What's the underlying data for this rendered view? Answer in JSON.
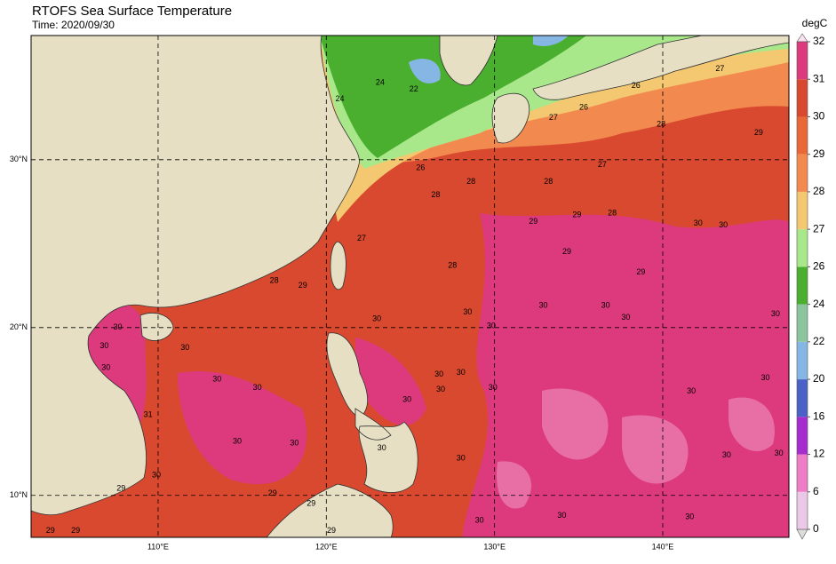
{
  "chart_data": {
    "type": "map",
    "title": "RTOFS Sea Surface Temperature",
    "subtitle": "Time: 2020/09/30",
    "xlim": [
      102.45,
      147.5
    ],
    "ylim": [
      7.5,
      37.4
    ],
    "xticks": [
      {
        "value": 110,
        "label": "110°E"
      },
      {
        "value": 120,
        "label": "120°E"
      },
      {
        "value": 130,
        "label": "130°E"
      },
      {
        "value": 140,
        "label": "140°E"
      }
    ],
    "yticks": [
      {
        "value": 10,
        "label": "10°N"
      },
      {
        "value": 20,
        "label": "20°N"
      },
      {
        "value": 30,
        "label": "30°N"
      }
    ],
    "grid": true,
    "colorbar": {
      "label": "degC",
      "levels": [
        0,
        6,
        12,
        16,
        20,
        22,
        24,
        26,
        27,
        28,
        29,
        30,
        31,
        32
      ],
      "colors": [
        "#ecc8e8",
        "#ee7cc6",
        "#a62cd0",
        "#4a62c8",
        "#86b6e4",
        "#8cc4a0",
        "#4aae2e",
        "#a8e88a",
        "#f4c870",
        "#f4894e",
        "#ea6838",
        "#d9492f",
        "#dc3a7c"
      ],
      "under_color": "#dddddd",
      "over_color": "#fbe0ef"
    },
    "contour_labels": [
      {
        "text": "22",
        "lon": 125.2,
        "lat": 34.2
      },
      {
        "text": "24",
        "lon": 123.2,
        "lat": 34.6
      },
      {
        "text": "24",
        "lon": 120.8,
        "lat": 33.6
      },
      {
        "text": "26",
        "lon": 135.3,
        "lat": 33.1
      },
      {
        "text": "26",
        "lon": 138.4,
        "lat": 34.4
      },
      {
        "text": "27",
        "lon": 143.4,
        "lat": 35.4
      },
      {
        "text": "27",
        "lon": 133.5,
        "lat": 32.5
      },
      {
        "text": "27",
        "lon": 136.4,
        "lat": 29.7
      },
      {
        "text": "28",
        "lon": 139.9,
        "lat": 32.1
      },
      {
        "text": "29",
        "lon": 145.7,
        "lat": 31.6
      },
      {
        "text": "26",
        "lon": 125.6,
        "lat": 29.5
      },
      {
        "text": "28",
        "lon": 128.6,
        "lat": 28.7
      },
      {
        "text": "28",
        "lon": 133.2,
        "lat": 28.7
      },
      {
        "text": "28",
        "lon": 126.5,
        "lat": 27.9
      },
      {
        "text": "29",
        "lon": 132.3,
        "lat": 26.3
      },
      {
        "text": "29",
        "lon": 134.9,
        "lat": 26.7
      },
      {
        "text": "28",
        "lon": 137.0,
        "lat": 26.8
      },
      {
        "text": "27",
        "lon": 122.1,
        "lat": 25.3
      },
      {
        "text": "29",
        "lon": 134.3,
        "lat": 24.5
      },
      {
        "text": "30",
        "lon": 142.1,
        "lat": 26.2
      },
      {
        "text": "30",
        "lon": 143.6,
        "lat": 26.1
      },
      {
        "text": "29",
        "lon": 138.7,
        "lat": 23.3
      },
      {
        "text": "28",
        "lon": 116.9,
        "lat": 22.8
      },
      {
        "text": "29",
        "lon": 118.6,
        "lat": 22.5
      },
      {
        "text": "28",
        "lon": 127.5,
        "lat": 23.7
      },
      {
        "text": "30",
        "lon": 123.0,
        "lat": 20.5
      },
      {
        "text": "30",
        "lon": 128.4,
        "lat": 20.9
      },
      {
        "text": "30",
        "lon": 129.8,
        "lat": 20.1
      },
      {
        "text": "30",
        "lon": 132.9,
        "lat": 21.3
      },
      {
        "text": "30",
        "lon": 136.6,
        "lat": 21.3
      },
      {
        "text": "30",
        "lon": 137.8,
        "lat": 20.6
      },
      {
        "text": "30",
        "lon": 146.7,
        "lat": 20.8
      },
      {
        "text": "30",
        "lon": 111.6,
        "lat": 18.8
      },
      {
        "text": "30",
        "lon": 113.5,
        "lat": 16.9
      },
      {
        "text": "30",
        "lon": 115.9,
        "lat": 16.4
      },
      {
        "text": "30",
        "lon": 126.7,
        "lat": 17.2
      },
      {
        "text": "30",
        "lon": 128.0,
        "lat": 17.3
      },
      {
        "text": "30",
        "lon": 124.8,
        "lat": 15.7
      },
      {
        "text": "30",
        "lon": 126.8,
        "lat": 16.3
      },
      {
        "text": "30",
        "lon": 129.9,
        "lat": 16.4
      },
      {
        "text": "30",
        "lon": 141.7,
        "lat": 16.2
      },
      {
        "text": "30",
        "lon": 146.1,
        "lat": 17.0
      },
      {
        "text": "30",
        "lon": 114.7,
        "lat": 13.2
      },
      {
        "text": "30",
        "lon": 118.1,
        "lat": 13.1
      },
      {
        "text": "30",
        "lon": 123.3,
        "lat": 12.8
      },
      {
        "text": "30",
        "lon": 128.0,
        "lat": 12.2
      },
      {
        "text": "30",
        "lon": 143.8,
        "lat": 12.4
      },
      {
        "text": "30",
        "lon": 146.9,
        "lat": 12.5
      },
      {
        "text": "30",
        "lon": 109.9,
        "lat": 11.2
      },
      {
        "text": "29",
        "lon": 107.8,
        "lat": 10.4
      },
      {
        "text": "29",
        "lon": 116.8,
        "lat": 10.1
      },
      {
        "text": "29",
        "lon": 119.1,
        "lat": 9.5
      },
      {
        "text": "30",
        "lon": 129.1,
        "lat": 8.5
      },
      {
        "text": "30",
        "lon": 134.0,
        "lat": 8.8
      },
      {
        "text": "30",
        "lon": 141.6,
        "lat": 8.7
      },
      {
        "text": "29",
        "lon": 103.6,
        "lat": 7.9
      },
      {
        "text": "29",
        "lon": 105.1,
        "lat": 7.9
      },
      {
        "text": "29",
        "lon": 120.3,
        "lat": 7.9
      },
      {
        "text": "31",
        "lon": 109.4,
        "lat": 14.8
      },
      {
        "text": "30",
        "lon": 106.8,
        "lat": 18.9
      },
      {
        "text": "30",
        "lon": 106.9,
        "lat": 17.6
      },
      {
        "text": "30",
        "lon": 107.6,
        "lat": 20.0
      }
    ]
  }
}
